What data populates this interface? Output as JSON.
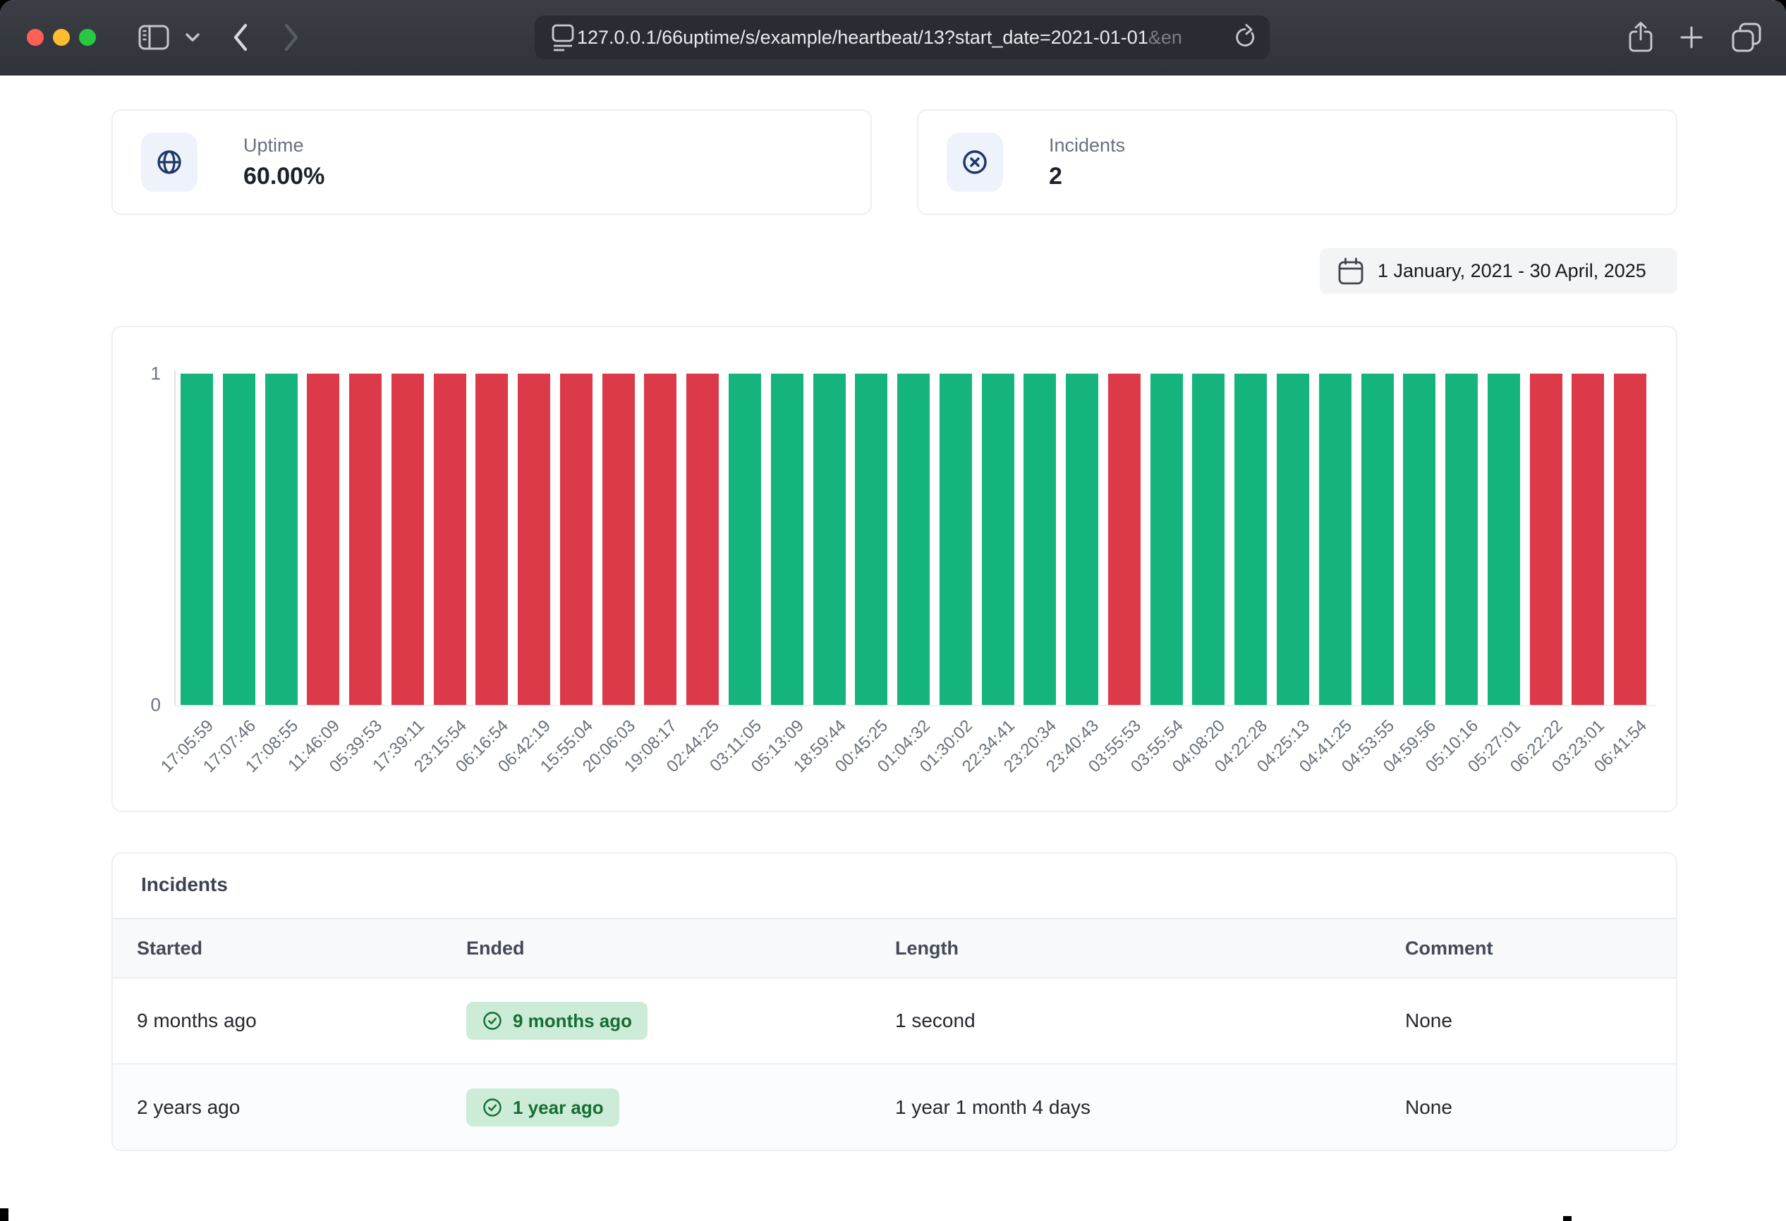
{
  "browser": {
    "url": "127.0.0.1/66uptime/s/example/heartbeat/13?start_date=2021-01-01",
    "url_overflow": "&en",
    "traffic_light_colors": [
      "#ff5f57",
      "#febc2e",
      "#28c840"
    ]
  },
  "stats": {
    "uptime": {
      "label": "Uptime",
      "value": "60.00%",
      "icon": "globe-icon"
    },
    "incidents": {
      "label": "Incidents",
      "value": "2",
      "icon": "x-circle-icon"
    }
  },
  "date_range": {
    "label": "1 January, 2021 - 30 April, 2025",
    "icon": "calendar-icon"
  },
  "chart_data": {
    "type": "bar",
    "categories": [
      "17:05:59",
      "17:07:46",
      "17:08:55",
      "11:46:09",
      "05:39:53",
      "17:39:11",
      "23:15:54",
      "06:16:54",
      "06:42:19",
      "15:55:04",
      "20:06:03",
      "19:08:17",
      "02:44:25",
      "03:11:05",
      "05:13:09",
      "18:59:44",
      "00:45:25",
      "01:04:32",
      "01:30:02",
      "22:34:41",
      "23:20:34",
      "23:40:43",
      "03:55:53",
      "03:55:54",
      "04:08:20",
      "04:22:28",
      "04:25:13",
      "04:41:25",
      "04:53:55",
      "04:59:56",
      "05:10:16",
      "05:27:01",
      "06:22:22",
      "03:23:01",
      "06:41:54"
    ],
    "values": [
      1,
      1,
      1,
      1,
      1,
      1,
      1,
      1,
      1,
      1,
      1,
      1,
      1,
      1,
      1,
      1,
      1,
      1,
      1,
      1,
      1,
      1,
      1,
      1,
      1,
      1,
      1,
      1,
      1,
      1,
      1,
      1,
      1,
      1,
      1
    ],
    "statuses": [
      "up",
      "up",
      "up",
      "down",
      "down",
      "down",
      "down",
      "down",
      "down",
      "down",
      "down",
      "down",
      "down",
      "up",
      "up",
      "up",
      "up",
      "up",
      "up",
      "up",
      "up",
      "up",
      "down",
      "up",
      "up",
      "up",
      "up",
      "up",
      "up",
      "up",
      "up",
      "up",
      "down",
      "down",
      "down"
    ],
    "status_colors": {
      "up": "#16b47d",
      "down": "#dc3a49"
    },
    "ylim": [
      0,
      1
    ],
    "ytick_max": "1",
    "ytick_min": "0",
    "xlabel": "",
    "ylabel": "",
    "grid": false,
    "legend": false
  },
  "incidents_table": {
    "title": "Incidents",
    "columns": [
      "Started",
      "Ended",
      "Length",
      "Comment"
    ],
    "rows": [
      {
        "started": "9 months ago",
        "ended": "9 months ago",
        "length": "1 second",
        "comment": "None"
      },
      {
        "started": "2 years ago",
        "ended": "1 year ago",
        "length": "1 year 1 month 4 days",
        "comment": "None"
      }
    ],
    "ended_badge_colors": {
      "background": "#cdecd7",
      "text": "#156d34"
    }
  }
}
